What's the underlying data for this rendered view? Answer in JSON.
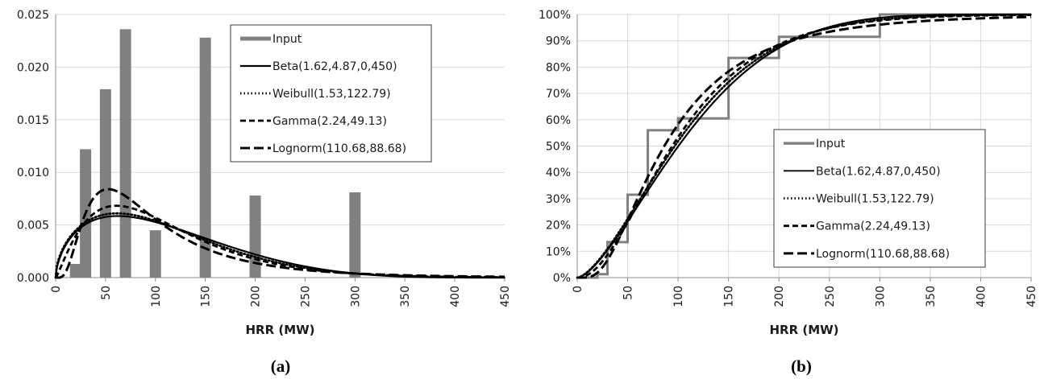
{
  "chart_data": [
    {
      "panel_label": "(a)",
      "type": "bar",
      "xlabel": "HRR (MW)",
      "ylabel": "",
      "xlim": [
        0,
        450
      ],
      "ylim": [
        0,
        0.025
      ],
      "xticks": [
        "0",
        "50",
        "100",
        "150",
        "200",
        "250",
        "300",
        "350",
        "400",
        "450"
      ],
      "yticks": [
        "0.000",
        "0.005",
        "0.010",
        "0.015",
        "0.020",
        "0.025"
      ],
      "grid": "horizontal",
      "legend_position": "top-right",
      "bars": {
        "name": "Input",
        "x": [
          20,
          30,
          50,
          70,
          100,
          150,
          200,
          300
        ],
        "values": [
          0.0013,
          0.0122,
          0.0179,
          0.0236,
          0.0045,
          0.0228,
          0.0078,
          0.0081
        ]
      },
      "series": [
        {
          "name": "Beta(1.62,4.87,0,450)",
          "dist": "beta",
          "params": [
            1.62,
            4.87,
            0,
            450
          ],
          "style": "solid"
        },
        {
          "name": "Weibull(1.53,122.79)",
          "dist": "weibull",
          "params": [
            1.53,
            122.79
          ],
          "style": "dotted"
        },
        {
          "name": "Gamma(2.24,49.13)",
          "dist": "gamma",
          "params": [
            2.24,
            49.13
          ],
          "style": "dashed"
        },
        {
          "name": "Lognorm(110.68,88.68)",
          "dist": "lognorm",
          "params": [
            110.68,
            88.68
          ],
          "style": "longdash"
        }
      ]
    },
    {
      "panel_label": "(b)",
      "type": "line",
      "xlabel": "HRR (MW)",
      "ylabel": "",
      "xlim": [
        0,
        450
      ],
      "ylim": [
        0,
        1
      ],
      "xticks": [
        "0",
        "50",
        "100",
        "150",
        "200",
        "250",
        "300",
        "350",
        "400",
        "450"
      ],
      "yticks": [
        "0%",
        "10%",
        "20%",
        "30%",
        "40%",
        "50%",
        "60%",
        "70%",
        "80%",
        "90%",
        "100%"
      ],
      "grid": "both",
      "legend_position": "bottom-right",
      "step": {
        "name": "Input",
        "x": [
          0,
          20,
          30,
          50,
          70,
          100,
          150,
          200,
          300,
          450
        ],
        "y": [
          0,
          0.013,
          0.135,
          0.315,
          0.56,
          0.605,
          0.835,
          0.915,
          1.0,
          1.0
        ]
      },
      "series": [
        {
          "name": "Beta(1.62,4.87,0,450)",
          "dist": "beta",
          "params": [
            1.62,
            4.87,
            0,
            450
          ],
          "style": "solid"
        },
        {
          "name": "Weibull(1.53,122.79)",
          "dist": "weibull",
          "params": [
            1.53,
            122.79
          ],
          "style": "dotted"
        },
        {
          "name": "Gamma(2.24,49.13)",
          "dist": "gamma",
          "params": [
            2.24,
            49.13
          ],
          "style": "dashed"
        },
        {
          "name": "Lognorm(110.68,88.68)",
          "dist": "lognorm",
          "params": [
            110.68,
            88.68
          ],
          "style": "longdash"
        }
      ]
    }
  ],
  "colors": {
    "input": "#808080",
    "curve": "#000000",
    "grid": "#d9d9d9",
    "axis": "#8c8c8c"
  }
}
